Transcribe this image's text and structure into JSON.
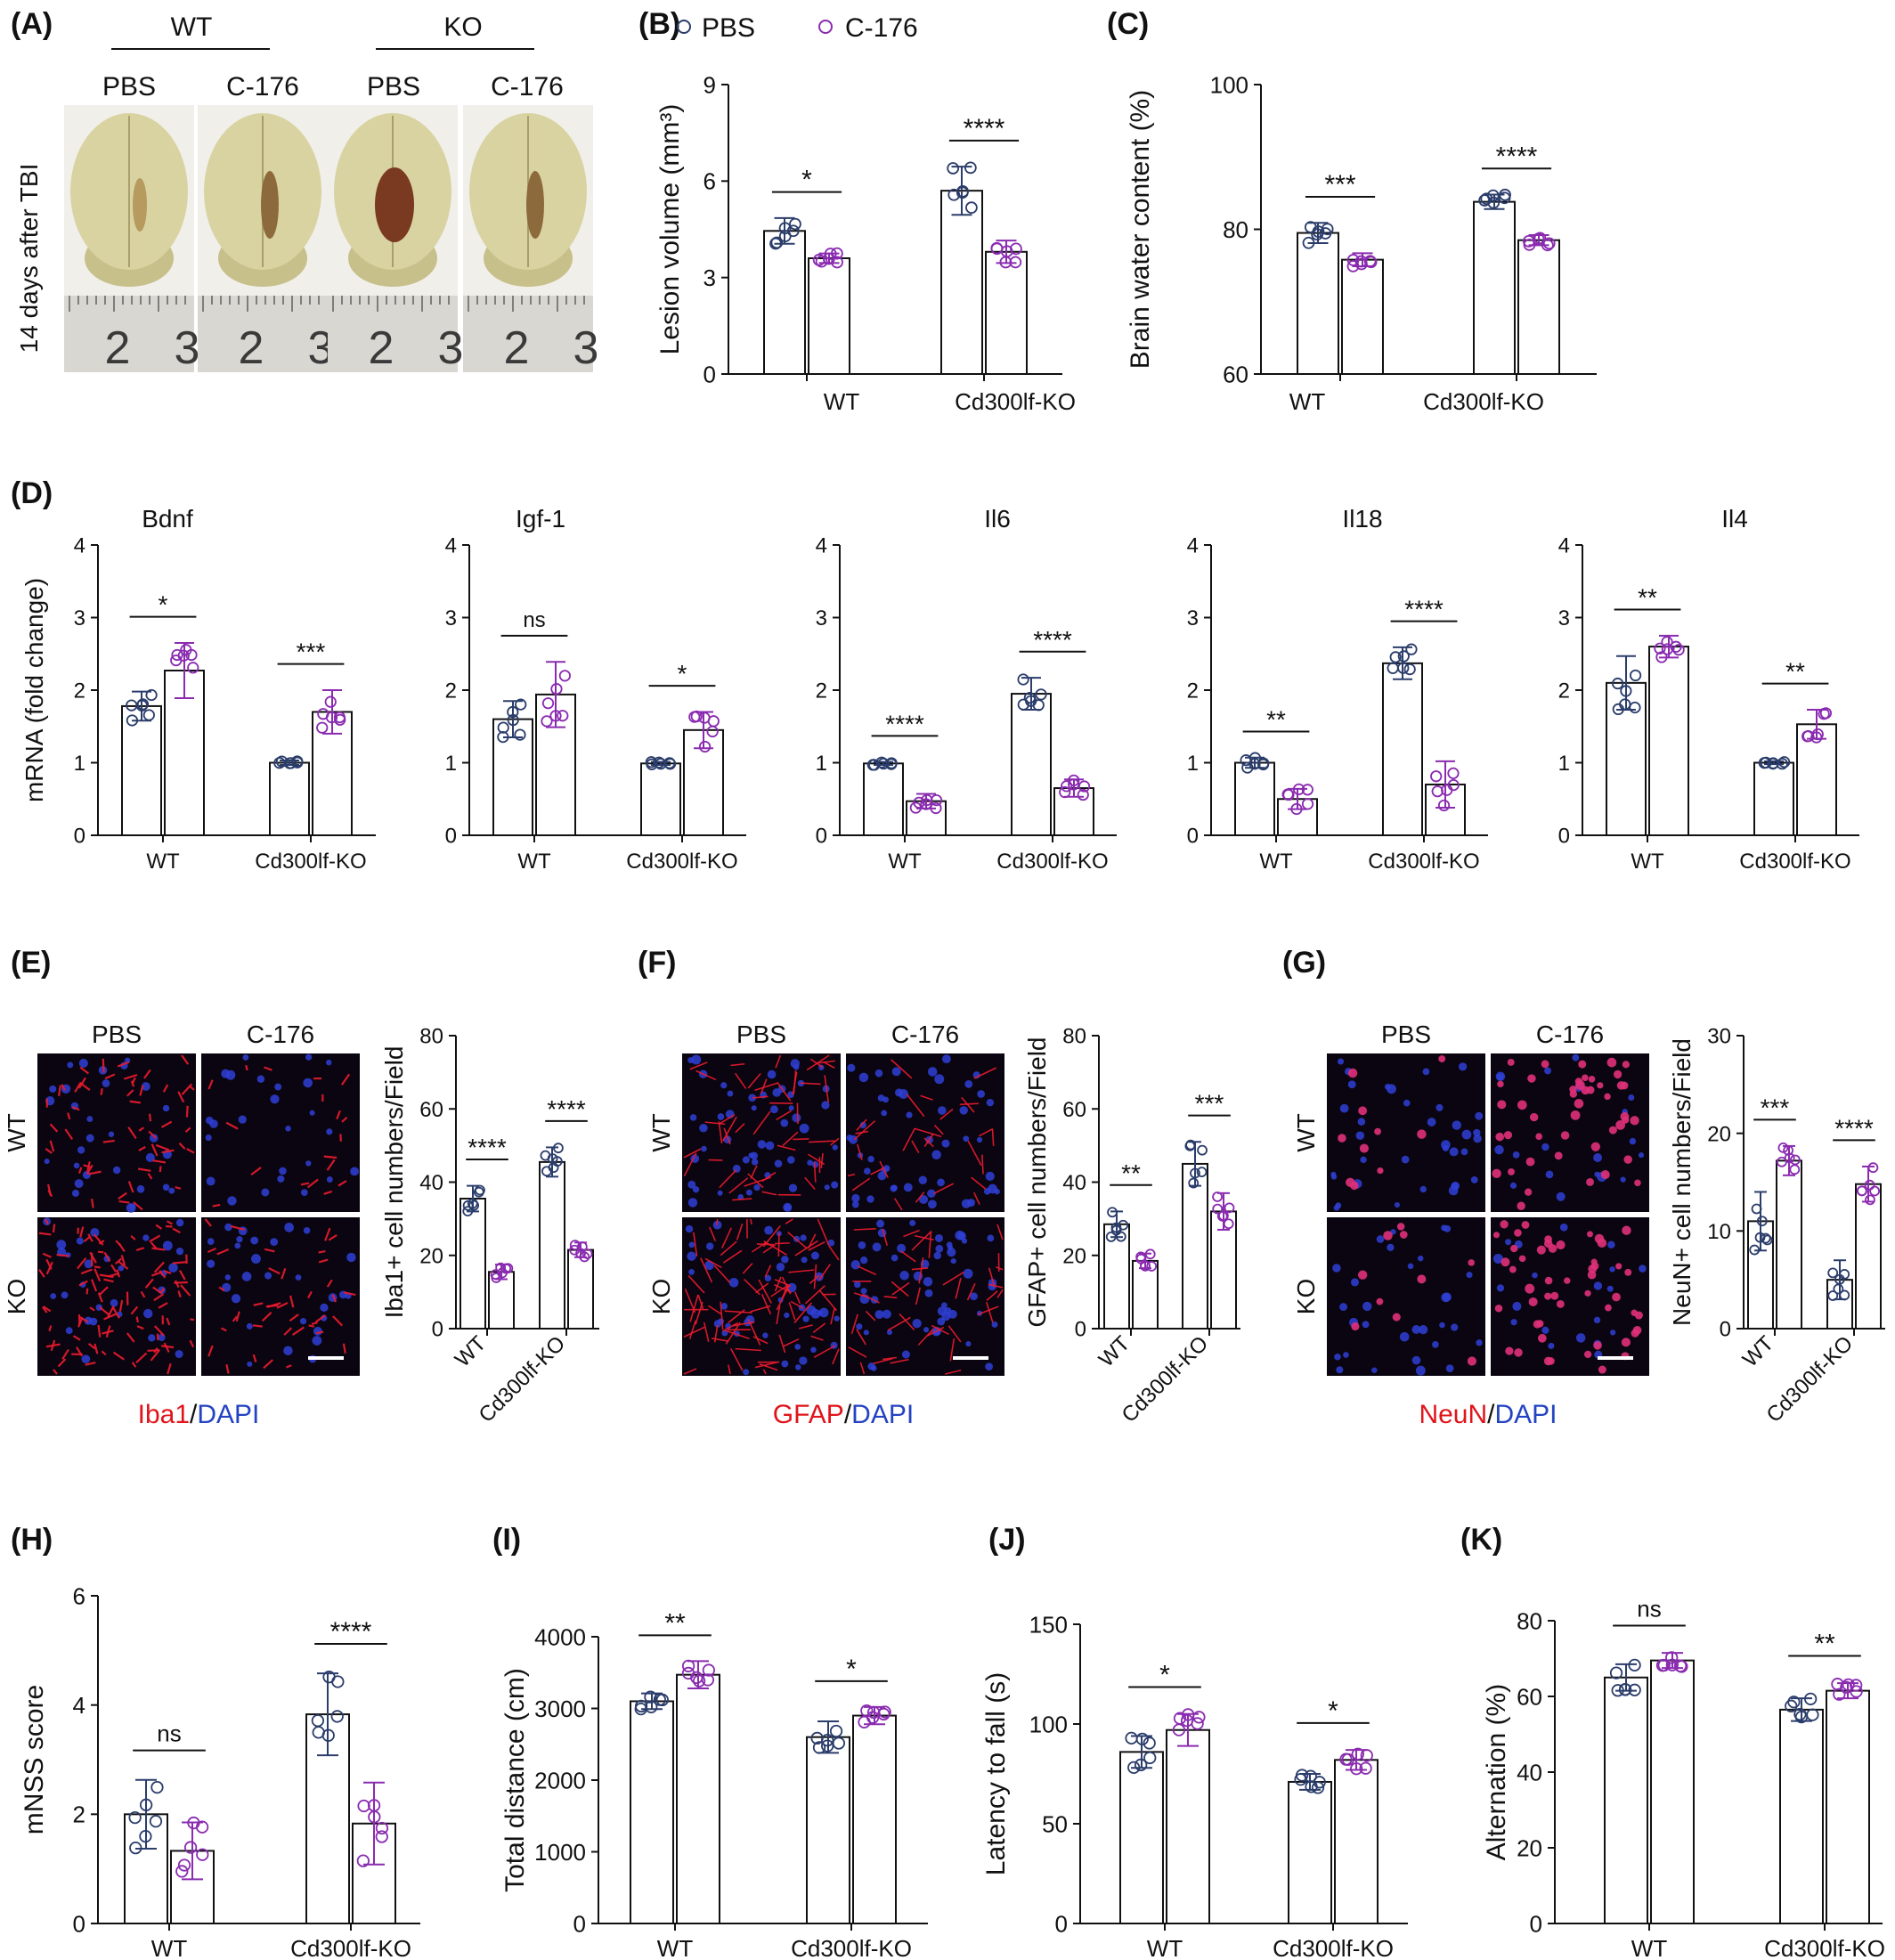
{
  "colors": {
    "pbs": "#2b3d6b",
    "c176": "#8a2bb0",
    "red": "#e0141b",
    "blue": "#2443c2",
    "axis": "#111111"
  },
  "legend": {
    "pbs": "PBS",
    "c176": "C-176"
  },
  "panels": {
    "A": {
      "letter": "(A)",
      "groups": [
        "WT",
        "KO"
      ],
      "treatments": [
        "PBS",
        "C-176",
        "PBS",
        "C-176"
      ],
      "ylabel": "14 days after TBI",
      "ruler_marks": [
        "2",
        "3"
      ]
    },
    "E": {
      "letter": "(E)",
      "cols": [
        "PBS",
        "C-176"
      ],
      "rows": [
        "WT",
        "KO"
      ],
      "stain_red": "Iba1",
      "stain_sep": "/",
      "stain_blue": "DAPI"
    },
    "F": {
      "letter": "(F)",
      "cols": [
        "PBS",
        "C-176"
      ],
      "rows": [
        "WT",
        "KO"
      ],
      "stain_red": "GFAP",
      "stain_sep": "/",
      "stain_blue": "DAPI"
    },
    "G": {
      "letter": "(G)",
      "cols": [
        "PBS",
        "C-176"
      ],
      "rows": [
        "WT",
        "KO"
      ],
      "stain_red": "NeuN",
      "stain_sep": "/",
      "stain_blue": "DAPI"
    }
  },
  "chart_data": [
    {
      "id": "B",
      "letter": "(B)",
      "type": "bar",
      "ylabel": "Lesion volume (mm³)",
      "ylim": [
        0,
        9
      ],
      "yticks": [
        0,
        3,
        6,
        9
      ],
      "categories": [
        "WT",
        "Cd300lf-KO"
      ],
      "series": [
        {
          "name": "PBS",
          "values": [
            4.45,
            5.7
          ],
          "sd": [
            0.4,
            0.75
          ]
        },
        {
          "name": "C-176",
          "values": [
            3.6,
            3.8
          ],
          "sd": [
            0.15,
            0.35
          ]
        }
      ],
      "significance": [
        "*",
        "****"
      ]
    },
    {
      "id": "C",
      "letter": "(C)",
      "type": "bar",
      "ylabel": "Brain water content (%)",
      "ylim": [
        60,
        100
      ],
      "yticks": [
        60,
        80,
        100
      ],
      "categories": [
        "WT",
        "Cd300lf-KO"
      ],
      "series": [
        {
          "name": "PBS",
          "values": [
            79.5,
            83.8
          ],
          "sd": [
            1.4,
            1.0
          ]
        },
        {
          "name": "C-176",
          "values": [
            75.8,
            78.5
          ],
          "sd": [
            0.9,
            0.7
          ]
        }
      ],
      "significance": [
        "***",
        "****"
      ]
    },
    {
      "id": "D1",
      "letter": "(D)",
      "type": "bar",
      "title": "Bdnf",
      "ylabel": "mRNA (fold change)",
      "ylim": [
        0,
        4
      ],
      "yticks": [
        0,
        1,
        2,
        3,
        4
      ],
      "categories": [
        "WT",
        "Cd300lf-KO"
      ],
      "series": [
        {
          "name": "PBS",
          "values": [
            1.78,
            1.0
          ],
          "sd": [
            0.2,
            0.03
          ]
        },
        {
          "name": "C-176",
          "values": [
            2.27,
            1.7
          ],
          "sd": [
            0.38,
            0.3
          ]
        }
      ],
      "significance": [
        "*",
        "***"
      ]
    },
    {
      "id": "D2",
      "type": "bar",
      "title": "Igf-1",
      "ylim": [
        0,
        4
      ],
      "yticks": [
        0,
        1,
        2,
        3,
        4
      ],
      "categories": [
        "WT",
        "Cd300lf-KO"
      ],
      "series": [
        {
          "name": "PBS",
          "values": [
            1.6,
            0.99
          ],
          "sd": [
            0.25,
            0.02
          ]
        },
        {
          "name": "C-176",
          "values": [
            1.94,
            1.45
          ],
          "sd": [
            0.45,
            0.25
          ]
        }
      ],
      "significance": [
        "ns",
        "*"
      ]
    },
    {
      "id": "D3",
      "type": "bar",
      "title": "Il6",
      "ylim": [
        0,
        4
      ],
      "yticks": [
        0,
        1,
        2,
        3,
        4
      ],
      "categories": [
        "WT",
        "Cd300lf-KO"
      ],
      "series": [
        {
          "name": "PBS",
          "values": [
            0.99,
            1.95
          ],
          "sd": [
            0.02,
            0.22
          ]
        },
        {
          "name": "C-176",
          "values": [
            0.47,
            0.65
          ],
          "sd": [
            0.1,
            0.12
          ]
        }
      ],
      "significance": [
        "****",
        "****"
      ]
    },
    {
      "id": "D4",
      "type": "bar",
      "title": "Il18",
      "ylim": [
        0,
        4
      ],
      "yticks": [
        0,
        1,
        2,
        3,
        4
      ],
      "categories": [
        "WT",
        "Cd300lf-KO"
      ],
      "series": [
        {
          "name": "PBS",
          "values": [
            1.0,
            2.37
          ],
          "sd": [
            0.07,
            0.22
          ]
        },
        {
          "name": "C-176",
          "values": [
            0.5,
            0.7
          ],
          "sd": [
            0.14,
            0.32
          ]
        }
      ],
      "significance": [
        "**",
        "****"
      ]
    },
    {
      "id": "D5",
      "type": "bar",
      "title": "Il4",
      "ylim": [
        0,
        4
      ],
      "yticks": [
        0,
        1,
        2,
        3,
        4
      ],
      "categories": [
        "WT",
        "Cd300lf-KO"
      ],
      "series": [
        {
          "name": "PBS",
          "values": [
            2.1,
            1.0
          ],
          "sd": [
            0.37,
            0.02
          ]
        },
        {
          "name": "C-176",
          "values": [
            2.6,
            1.53
          ],
          "sd": [
            0.15,
            0.2
          ]
        }
      ],
      "significance": [
        "**",
        "**"
      ]
    },
    {
      "id": "E",
      "type": "bar",
      "ylabel": "Iba1+ cell numbers/Field",
      "ylim": [
        0,
        80
      ],
      "yticks": [
        0,
        20,
        40,
        60,
        80
      ],
      "categories": [
        "WT",
        "Cd300lf-KO"
      ],
      "series": [
        {
          "name": "PBS",
          "values": [
            35.5,
            45.5
          ],
          "sd": [
            3.5,
            4.0
          ]
        },
        {
          "name": "C-176",
          "values": [
            15.5,
            21.5
          ],
          "sd": [
            2.0,
            2.0
          ]
        }
      ],
      "significance": [
        "****",
        "****"
      ]
    },
    {
      "id": "F",
      "type": "bar",
      "ylabel": "GFAP+ cell numbers/Field",
      "ylim": [
        0,
        80
      ],
      "yticks": [
        0,
        20,
        40,
        60,
        80
      ],
      "categories": [
        "WT",
        "Cd300lf-KO"
      ],
      "series": [
        {
          "name": "PBS",
          "values": [
            28.5,
            45.0
          ],
          "sd": [
            3.5,
            6.0
          ]
        },
        {
          "name": "C-176",
          "values": [
            18.5,
            32.0
          ],
          "sd": [
            2.0,
            5.0
          ]
        }
      ],
      "significance": [
        "**",
        "***"
      ]
    },
    {
      "id": "G",
      "type": "bar",
      "ylabel": "NeuN+ cell numbers/Field",
      "ylim": [
        0,
        30
      ],
      "yticks": [
        0,
        10,
        20,
        30
      ],
      "categories": [
        "WT",
        "Cd300lf-KO"
      ],
      "series": [
        {
          "name": "PBS",
          "values": [
            11.0,
            5.0
          ],
          "sd": [
            3.0,
            2.0
          ]
        },
        {
          "name": "C-176",
          "values": [
            17.2,
            14.8
          ],
          "sd": [
            1.5,
            1.8
          ]
        }
      ],
      "significance": [
        "***",
        "****"
      ]
    },
    {
      "id": "H",
      "letter": "(H)",
      "type": "bar",
      "ylabel": "mNSS score",
      "ylim": [
        0,
        6
      ],
      "yticks": [
        0,
        2,
        4,
        6
      ],
      "categories": [
        "WT",
        "Cd300lf-KO"
      ],
      "series": [
        {
          "name": "PBS",
          "values": [
            2.0,
            3.83
          ],
          "sd": [
            0.63,
            0.75
          ]
        },
        {
          "name": "C-176",
          "values": [
            1.33,
            1.83
          ],
          "sd": [
            0.52,
            0.75
          ]
        }
      ],
      "significance": [
        "ns",
        "****"
      ]
    },
    {
      "id": "I",
      "letter": "(I)",
      "type": "bar",
      "ylabel": "Total distance (cm)",
      "ylim": [
        0,
        4000
      ],
      "yticks": [
        0,
        1000,
        2000,
        3000,
        4000
      ],
      "categories": [
        "WT",
        "Cd300lf-KO"
      ],
      "series": [
        {
          "name": "PBS",
          "values": [
            3100,
            2600
          ],
          "sd": [
            110,
            220
          ]
        },
        {
          "name": "C-176",
          "values": [
            3470,
            2900
          ],
          "sd": [
            190,
            120
          ]
        }
      ],
      "significance": [
        "**",
        "*"
      ]
    },
    {
      "id": "J",
      "letter": "(J)",
      "type": "bar",
      "ylabel": "Latency to fall (s)",
      "ylim": [
        0,
        150
      ],
      "yticks": [
        0,
        50,
        100,
        150
      ],
      "categories": [
        "WT",
        "Cd300lf-KO"
      ],
      "series": [
        {
          "name": "PBS",
          "values": [
            86,
            71
          ],
          "sd": [
            8,
            4
          ]
        },
        {
          "name": "C-176",
          "values": [
            97,
            82
          ],
          "sd": [
            8,
            5
          ]
        }
      ],
      "significance": [
        "*",
        "*"
      ]
    },
    {
      "id": "K",
      "letter": "(K)",
      "type": "bar",
      "ylabel": "Alternation (%)",
      "ylim": [
        0,
        80
      ],
      "yticks": [
        0,
        20,
        40,
        60,
        80
      ],
      "categories": [
        "WT",
        "Cd300lf-KO"
      ],
      "series": [
        {
          "name": "PBS",
          "values": [
            65,
            56.5
          ],
          "sd": [
            3.5,
            3
          ]
        },
        {
          "name": "C-176",
          "values": [
            69.5,
            61.5
          ],
          "sd": [
            2,
            2
          ]
        }
      ],
      "significance": [
        "ns",
        "**"
      ]
    }
  ]
}
